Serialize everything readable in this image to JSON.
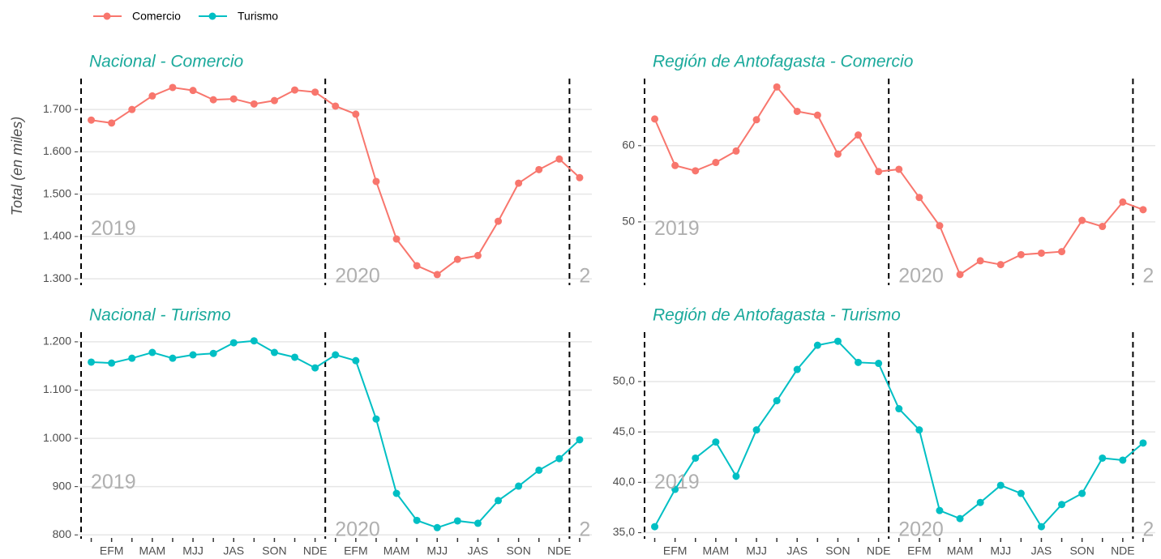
{
  "chart_data": [
    {
      "type": "line",
      "title": "Nacional - Comercio",
      "y_label": "Total (en miles)",
      "series": [
        {
          "name": "Comercio",
          "color": "#f8766d",
          "values": [
            1675,
            1668,
            1700,
            1732,
            1752,
            1745,
            1723,
            1725,
            1713,
            1721,
            1746,
            1741,
            1708,
            1689,
            1530,
            1394,
            1331,
            1310,
            1346,
            1355,
            1436,
            1526,
            1558,
            1583,
            1539
          ]
        }
      ],
      "ylim": [
        1285,
        1773
      ],
      "yticks": [
        {
          "value": 1300,
          "label": "1.300"
        },
        {
          "value": 1400,
          "label": "1.400"
        },
        {
          "value": 1500,
          "label": "1.500"
        },
        {
          "value": 1600,
          "label": "1.600"
        },
        {
          "value": 1700,
          "label": "1.700"
        }
      ],
      "annotations": [
        "2019",
        "2020",
        "2"
      ],
      "grid": true
    },
    {
      "type": "line",
      "title": "Región de Antofagasta - Comercio",
      "series": [
        {
          "name": "Comercio",
          "color": "#f8766d",
          "values": [
            63.5,
            57.4,
            56.7,
            57.8,
            59.3,
            63.4,
            67.7,
            64.5,
            64.0,
            58.9,
            61.4,
            56.6,
            56.9,
            53.2,
            49.5,
            43.1,
            44.9,
            44.4,
            45.7,
            45.9,
            46.1,
            50.2,
            49.4,
            52.6,
            51.6
          ]
        }
      ],
      "ylim": [
        41.7,
        68.8
      ],
      "yticks": [
        50,
        60
      ],
      "annotations": [
        "2019",
        "2020",
        "2"
      ],
      "grid": true
    },
    {
      "type": "line",
      "title": "Nacional - Turismo",
      "categories": [
        null,
        "EFM",
        null,
        "MAM",
        null,
        "MJJ",
        null,
        "JAS",
        null,
        "SON",
        null,
        "NDE",
        null,
        "EFM",
        null,
        "MAM",
        null,
        "MJJ",
        null,
        "JAS",
        null,
        "SON",
        null,
        "NDE",
        null
      ],
      "series": [
        {
          "name": "Turismo",
          "color": "#00bfc4",
          "values": [
            1158,
            1156,
            1166,
            1178,
            1166,
            1173,
            1176,
            1198,
            1202,
            1178,
            1168,
            1146,
            1173,
            1161,
            1040,
            886,
            830,
            815,
            829,
            824,
            871,
            901,
            934,
            958,
            997
          ]
        }
      ],
      "ylim": [
        792,
        1220
      ],
      "yticks": [
        800,
        900,
        {
          "value": 1000,
          "label": "1.000"
        },
        {
          "value": 1100,
          "label": "1.100"
        },
        {
          "value": 1200,
          "label": "1.200"
        }
      ],
      "annotations": [
        "2019",
        "2020",
        "2"
      ],
      "grid": true
    },
    {
      "type": "line",
      "title": "Región de Antofagasta - Turismo",
      "categories": [
        null,
        "EFM",
        null,
        "MAM",
        null,
        "MJJ",
        null,
        "JAS",
        null,
        "SON",
        null,
        "NDE",
        null,
        "EFM",
        null,
        "MAM",
        null,
        "MJJ",
        null,
        "JAS",
        null,
        "SON",
        null,
        "NDE",
        null
      ],
      "series": [
        {
          "name": "Turismo",
          "color": "#00bfc4",
          "values": [
            35.6,
            39.3,
            42.4,
            44.0,
            40.6,
            45.2,
            48.1,
            51.2,
            53.6,
            54.0,
            51.9,
            51.8,
            47.3,
            45.2,
            37.2,
            36.4,
            38.0,
            39.7,
            38.9,
            35.6,
            37.8,
            38.9,
            42.4,
            42.2,
            43.9
          ]
        }
      ],
      "ylim": [
        34.4,
        54.9
      ],
      "yticks": [
        {
          "value": 35,
          "label": "35,0"
        },
        {
          "value": 40,
          "label": "40,0"
        },
        {
          "value": 45,
          "label": "45,0"
        },
        {
          "value": 50,
          "label": "50,0"
        }
      ],
      "annotations": [
        "2019",
        "2020",
        "2"
      ],
      "grid": true
    }
  ]
}
